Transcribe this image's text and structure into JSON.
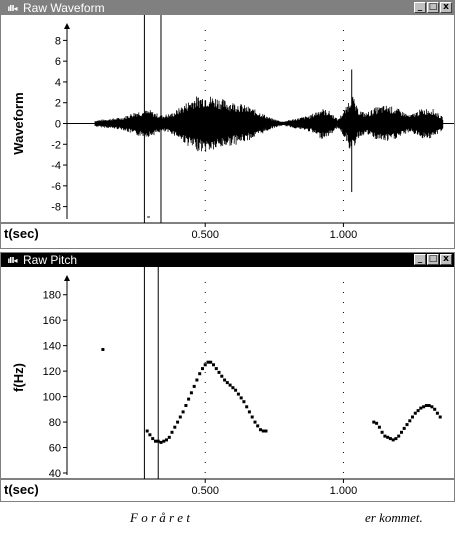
{
  "waveform_window": {
    "title": "Raw Waveform",
    "icon": "window-app-icon",
    "controls": [
      "_",
      "□",
      "x"
    ]
  },
  "pitch_window": {
    "title": "Raw Pitch",
    "icon": "window-app-icon",
    "controls": [
      "_",
      "□",
      "x"
    ]
  },
  "caption": {
    "left": "F o r å r e t",
    "right": "er kommet."
  },
  "chart_data": [
    {
      "type": "line",
      "title": "",
      "ylabel": "Waveform",
      "xlabel": "t(sec)",
      "ylim": [
        -9,
        9
      ],
      "xlim": [
        0,
        1.4
      ],
      "y_ticks": [
        "8",
        "6",
        "4",
        "2",
        "0",
        "-2",
        "-4",
        "-6",
        "-8"
      ],
      "y_tick_values": [
        8,
        6,
        4,
        2,
        0,
        -2,
        -4,
        -6,
        -8
      ],
      "x_ticks": [
        "0.500",
        "1.000"
      ],
      "x_tick_values": [
        0.5,
        1.0
      ],
      "cursors": [
        0.28,
        0.34
      ],
      "envelope": {
        "t": [
          0.1,
          0.2,
          0.25,
          0.3,
          0.34,
          0.38,
          0.42,
          0.46,
          0.5,
          0.54,
          0.58,
          0.62,
          0.66,
          0.7,
          0.74,
          0.78,
          0.88,
          0.92,
          0.95,
          0.98,
          1.01,
          1.03,
          1.05,
          1.08,
          1.12,
          1.16,
          1.2,
          1.24,
          1.28,
          1.32,
          1.36
        ],
        "amp": [
          0.3,
          0.6,
          1.2,
          1.3,
          0.8,
          1.0,
          1.8,
          2.6,
          2.8,
          2.6,
          2.2,
          2.0,
          1.6,
          1.1,
          0.5,
          0.2,
          0.8,
          1.5,
          1.2,
          0.4,
          1.6,
          3.0,
          1.5,
          1.0,
          1.6,
          1.8,
          1.4,
          0.8,
          1.4,
          1.5,
          0.6
        ]
      }
    },
    {
      "type": "scatter",
      "title": "",
      "ylabel": "f(Hz)",
      "xlabel": "t(sec)",
      "ylim": [
        40,
        190
      ],
      "xlim": [
        0,
        1.4
      ],
      "y_ticks": [
        "180",
        "160",
        "140",
        "120",
        "100",
        "80",
        "60",
        "40"
      ],
      "y_tick_values": [
        180,
        160,
        140,
        120,
        100,
        80,
        60,
        40
      ],
      "x_ticks": [
        "0.500",
        "1.000"
      ],
      "x_tick_values": [
        0.5,
        1.0
      ],
      "cursors": [
        0.28,
        0.33
      ],
      "series": [
        {
          "x": [
            0.13,
            0.29,
            0.3,
            0.31,
            0.32,
            0.33,
            0.34,
            0.35,
            0.36,
            0.37,
            0.38,
            0.39,
            0.4,
            0.41,
            0.42,
            0.43,
            0.44,
            0.45,
            0.46,
            0.47,
            0.48,
            0.49,
            0.5,
            0.51,
            0.52,
            0.53,
            0.54,
            0.55,
            0.56,
            0.57,
            0.58,
            0.59,
            0.6,
            0.61,
            0.62,
            0.63,
            0.64,
            0.65,
            0.66,
            0.67,
            0.68,
            0.69,
            0.7,
            0.71,
            0.72
          ],
          "y": [
            137,
            73,
            70,
            67,
            65,
            65,
            64,
            65,
            66,
            68,
            72,
            76,
            80,
            84,
            88,
            93,
            98,
            103,
            108,
            113,
            118,
            122,
            125,
            127,
            127,
            125,
            122,
            119,
            116,
            113,
            111,
            109,
            107,
            105,
            102,
            99,
            96,
            92,
            88,
            84,
            80,
            77,
            74,
            73,
            73
          ]
        },
        {
          "x": [
            1.11,
            1.12,
            1.13,
            1.14,
            1.15,
            1.16,
            1.17,
            1.18,
            1.19,
            1.2,
            1.21,
            1.22,
            1.23,
            1.24,
            1.25,
            1.26,
            1.27,
            1.28,
            1.29,
            1.3,
            1.31,
            1.32,
            1.33,
            1.34,
            1.35
          ],
          "y": [
            80,
            79,
            76,
            72,
            69,
            68,
            67,
            66,
            67,
            69,
            72,
            75,
            78,
            81,
            84,
            87,
            89,
            91,
            92,
            93,
            93,
            92,
            90,
            87,
            84
          ]
        }
      ]
    }
  ]
}
